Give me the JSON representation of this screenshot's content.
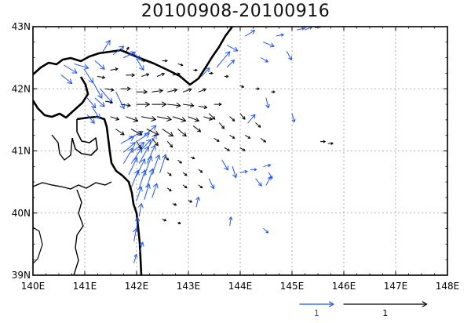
{
  "title": "20100908-20100916",
  "chart_data": {
    "type": "vector-map",
    "title": "20100908-20100916",
    "x_axis": {
      "unit": "degrees east",
      "range": [
        140,
        148
      ],
      "ticks": [
        140,
        141,
        142,
        143,
        144,
        145,
        146,
        147,
        148
      ],
      "tick_labels": [
        "140E",
        "141E",
        "142E",
        "143E",
        "144E",
        "145E",
        "146E",
        "147E",
        "148E"
      ]
    },
    "y_axis": {
      "unit": "degrees north",
      "range": [
        39,
        43
      ],
      "ticks": [
        39,
        40,
        41,
        42,
        43
      ],
      "tick_labels": [
        "39N",
        "40N",
        "41N",
        "42N",
        "43N"
      ]
    },
    "grid": true,
    "grid_style": "dashed",
    "legend_position": "bottom-right",
    "reference_vectors": [
      {
        "label": "1",
        "magnitude": 1,
        "color": "#2255ee",
        "length_deg": 0.65,
        "lon": 145.15
      },
      {
        "label": "1",
        "magnitude": 1,
        "color": "#000000",
        "length_deg": 1.6,
        "lon": 146.0
      }
    ],
    "series": [
      {
        "color": "#2255ee",
        "vectors": [
          [
            140.6,
            42.38,
            0.55,
            -0.28
          ],
          [
            140.8,
            42.4,
            0.6,
            -0.15
          ],
          [
            140.55,
            42.22,
            0.45,
            -0.3
          ],
          [
            141.0,
            42.3,
            0.35,
            -0.45
          ],
          [
            141.2,
            42.45,
            0.4,
            -0.3
          ],
          [
            141.35,
            42.6,
            0.3,
            0.4
          ],
          [
            141.55,
            42.55,
            0.45,
            0.3
          ],
          [
            141.75,
            42.5,
            0.5,
            0.2
          ],
          [
            141.9,
            42.6,
            0.4,
            -0.3
          ],
          [
            142.0,
            42.48,
            0.3,
            -0.4
          ],
          [
            141.15,
            42.12,
            0.4,
            -0.6
          ],
          [
            141.3,
            42.0,
            0.5,
            -0.5
          ],
          [
            141.2,
            41.85,
            0.4,
            -0.3
          ],
          [
            141.6,
            41.95,
            0.35,
            -0.6
          ],
          [
            141.05,
            41.85,
            0.35,
            -0.35
          ],
          [
            141.15,
            41.7,
            0.3,
            -0.4
          ],
          [
            141.05,
            41.58,
            0.3,
            -0.3
          ],
          [
            141.7,
            41.12,
            0.55,
            0.25
          ],
          [
            141.85,
            41.2,
            0.6,
            0.25
          ],
          [
            142.0,
            41.15,
            0.55,
            0.3
          ],
          [
            142.15,
            41.25,
            0.5,
            0.35
          ],
          [
            141.75,
            40.98,
            0.5,
            0.35
          ],
          [
            141.9,
            40.98,
            0.55,
            0.35
          ],
          [
            142.05,
            40.98,
            0.5,
            0.45
          ],
          [
            142.2,
            41.02,
            0.4,
            0.55
          ],
          [
            141.75,
            40.8,
            0.4,
            0.55
          ],
          [
            141.9,
            40.8,
            0.45,
            0.55
          ],
          [
            142.05,
            40.8,
            0.4,
            0.6
          ],
          [
            142.2,
            40.8,
            0.35,
            0.65
          ],
          [
            141.85,
            40.62,
            0.35,
            0.6
          ],
          [
            142.0,
            40.6,
            0.35,
            0.6
          ],
          [
            142.15,
            40.6,
            0.3,
            0.7
          ],
          [
            142.3,
            40.62,
            0.3,
            0.7
          ],
          [
            142.45,
            40.65,
            0.25,
            0.65
          ],
          [
            141.9,
            40.42,
            0.3,
            0.6
          ],
          [
            142.05,
            40.4,
            0.25,
            0.65
          ],
          [
            142.2,
            40.42,
            0.25,
            0.65
          ],
          [
            142.0,
            40.2,
            0.2,
            0.5
          ],
          [
            142.15,
            40.22,
            0.2,
            0.55
          ],
          [
            142.3,
            40.25,
            0.2,
            0.5
          ],
          [
            142.05,
            39.95,
            0.1,
            0.45
          ],
          [
            142.0,
            39.75,
            0.05,
            0.4
          ],
          [
            141.95,
            39.55,
            0.1,
            0.45
          ],
          [
            142.05,
            39.35,
            0.15,
            0.4
          ],
          [
            141.95,
            39.2,
            0.1,
            0.3
          ],
          [
            143.55,
            42.35,
            0.55,
            0.55
          ],
          [
            143.75,
            42.7,
            0.45,
            -0.2
          ],
          [
            144.1,
            42.85,
            0.4,
            0.2
          ],
          [
            144.45,
            42.75,
            0.45,
            -0.15
          ],
          [
            144.7,
            42.85,
            0.3,
            0.05
          ],
          [
            143.25,
            42.2,
            0.35,
            0.3
          ],
          [
            143.75,
            42.35,
            0.3,
            0.25
          ],
          [
            144.4,
            42.5,
            0.3,
            -0.15
          ],
          [
            144.9,
            42.6,
            0.2,
            -0.3
          ],
          [
            145.1,
            42.95,
            0.3,
            0.05
          ],
          [
            145.25,
            42.95,
            0.3,
            0.1
          ],
          [
            145.45,
            42.98,
            0.25,
            0.05
          ],
          [
            144.5,
            41.85,
            0.1,
            -0.35
          ],
          [
            144.15,
            41.45,
            0.3,
            0.3
          ],
          [
            145.0,
            41.6,
            0.1,
            -0.3
          ],
          [
            143.65,
            40.85,
            0.25,
            -0.35
          ],
          [
            143.85,
            40.75,
            0.15,
            -0.4
          ],
          [
            144.0,
            40.65,
            0.3,
            0.05
          ],
          [
            144.2,
            40.7,
            0.25,
            0.0
          ],
          [
            144.45,
            40.75,
            0.3,
            0.05
          ],
          [
            144.55,
            40.65,
            0.15,
            -0.2
          ],
          [
            143.4,
            40.55,
            0.2,
            -0.35
          ],
          [
            144.3,
            40.55,
            0.25,
            -0.25
          ],
          [
            144.5,
            40.45,
            0.2,
            0.3
          ],
          [
            143.15,
            40.1,
            0.1,
            0.35
          ],
          [
            143.8,
            39.8,
            0.05,
            0.3
          ],
          [
            144.45,
            39.75,
            0.2,
            -0.15
          ]
        ]
      },
      {
        "color": "#000000",
        "vectors": [
          [
            141.25,
            42.2,
            0.3,
            -0.05
          ],
          [
            141.5,
            42.3,
            0.3,
            0.05
          ],
          [
            141.8,
            42.22,
            0.35,
            0.0
          ],
          [
            142.1,
            42.2,
            0.3,
            0.08
          ],
          [
            142.4,
            42.2,
            0.3,
            0.1
          ],
          [
            142.7,
            42.22,
            0.3,
            0.05
          ],
          [
            141.4,
            42.0,
            0.35,
            -0.05
          ],
          [
            141.7,
            42.0,
            0.4,
            0.0
          ],
          [
            142.0,
            41.95,
            0.45,
            0.0
          ],
          [
            142.3,
            41.95,
            0.45,
            0.05
          ],
          [
            142.6,
            41.95,
            0.4,
            0.08
          ],
          [
            142.9,
            41.95,
            0.35,
            0.1
          ],
          [
            143.2,
            41.95,
            0.3,
            0.1
          ],
          [
            141.4,
            41.8,
            0.3,
            -0.05
          ],
          [
            141.7,
            41.75,
            0.4,
            -0.05
          ],
          [
            142.0,
            41.75,
            0.55,
            0.0
          ],
          [
            142.3,
            41.75,
            0.6,
            0.0
          ],
          [
            142.6,
            41.75,
            0.55,
            -0.05
          ],
          [
            142.9,
            41.75,
            0.45,
            -0.05
          ],
          [
            143.2,
            41.72,
            0.35,
            -0.05
          ],
          [
            143.5,
            41.75,
            0.3,
            0.0
          ],
          [
            141.5,
            41.55,
            0.35,
            -0.1
          ],
          [
            141.8,
            41.55,
            0.5,
            -0.15
          ],
          [
            142.1,
            41.55,
            0.6,
            -0.1
          ],
          [
            142.4,
            41.55,
            0.6,
            -0.1
          ],
          [
            142.7,
            41.55,
            0.55,
            -0.15
          ],
          [
            143.0,
            41.55,
            0.45,
            -0.15
          ],
          [
            143.3,
            41.55,
            0.35,
            -0.1
          ],
          [
            141.6,
            41.35,
            0.35,
            -0.2
          ],
          [
            141.9,
            41.35,
            0.45,
            -0.2
          ],
          [
            142.2,
            41.35,
            0.5,
            -0.2
          ],
          [
            142.5,
            41.35,
            0.45,
            -0.25
          ],
          [
            142.8,
            41.35,
            0.35,
            -0.25
          ],
          [
            143.1,
            41.4,
            0.3,
            -0.2
          ],
          [
            142.0,
            41.15,
            0.2,
            -0.25
          ],
          [
            142.3,
            41.2,
            0.25,
            -0.25
          ],
          [
            142.6,
            41.15,
            0.2,
            -0.2
          ],
          [
            143.4,
            41.6,
            0.25,
            -0.2
          ],
          [
            143.6,
            41.45,
            0.2,
            -0.2
          ],
          [
            143.8,
            41.55,
            0.2,
            -0.15
          ],
          [
            144.0,
            41.6,
            0.2,
            -0.2
          ],
          [
            144.3,
            41.45,
            0.2,
            -0.15
          ],
          [
            143.5,
            41.2,
            0.2,
            -0.1
          ],
          [
            143.8,
            41.25,
            0.2,
            -0.1
          ],
          [
            144.1,
            41.25,
            0.2,
            -0.1
          ],
          [
            144.4,
            41.2,
            0.2,
            -0.12
          ],
          [
            143.7,
            41.05,
            0.2,
            -0.1
          ],
          [
            144.0,
            41.05,
            0.2,
            -0.1
          ],
          [
            145.55,
            41.15,
            0.2,
            0.0
          ],
          [
            145.7,
            41.12,
            0.2,
            0.0
          ],
          [
            142.55,
            40.9,
            0.15,
            -0.1
          ],
          [
            142.8,
            40.85,
            0.15,
            -0.1
          ],
          [
            143.05,
            40.9,
            0.15,
            -0.05
          ],
          [
            142.6,
            40.65,
            0.15,
            -0.1
          ],
          [
            142.9,
            40.65,
            0.15,
            -0.1
          ],
          [
            143.2,
            40.7,
            0.15,
            -0.1
          ],
          [
            142.6,
            40.4,
            0.15,
            -0.1
          ],
          [
            142.9,
            40.45,
            0.15,
            -0.1
          ],
          [
            143.2,
            40.45,
            0.15,
            -0.1
          ],
          [
            142.7,
            40.15,
            0.15,
            -0.05
          ],
          [
            143.0,
            40.2,
            0.15,
            -0.05
          ],
          [
            142.5,
            39.9,
            0.15,
            -0.05
          ],
          [
            142.8,
            39.85,
            0.1,
            -0.05
          ],
          [
            141.8,
            42.6,
            0.1,
            0.15
          ],
          [
            142.1,
            42.45,
            0.15,
            0.0
          ],
          [
            142.5,
            42.45,
            0.2,
            0.0
          ],
          [
            142.8,
            42.4,
            0.2,
            -0.05
          ],
          [
            143.1,
            42.3,
            0.15,
            0.0
          ],
          [
            143.4,
            42.25,
            0.15,
            0.0
          ],
          [
            143.7,
            42.2,
            0.15,
            0.0
          ],
          [
            144.0,
            42.05,
            0.15,
            -0.05
          ],
          [
            144.3,
            42.0,
            0.15,
            0.0
          ],
          [
            144.6,
            41.95,
            0.15,
            0.0
          ]
        ]
      }
    ]
  }
}
